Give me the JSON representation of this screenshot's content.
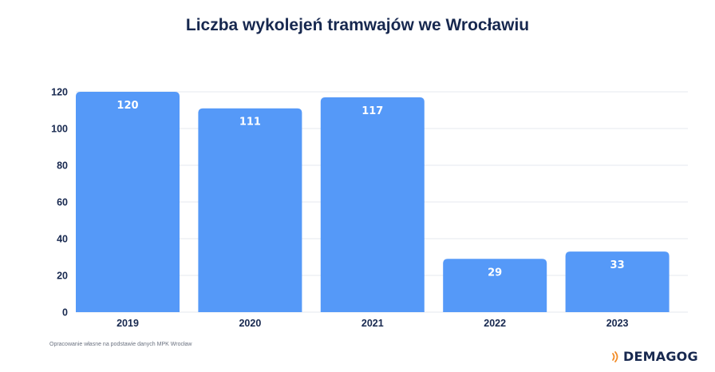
{
  "page": {
    "source_note": "Opracowanie własne na podstawie danych MPK Wrocław",
    "logo_text": "DEMAGOG"
  },
  "colors": {
    "bar": "#5599f8",
    "title": "#17284f",
    "grid": "#e6e9ef",
    "axis_text": "#17284f",
    "logo_accent": "#f28c28"
  },
  "chart_data": {
    "type": "bar",
    "title": "Liczba wykolejeń tramwajów we Wrocławiu",
    "xlabel": "",
    "ylabel": "",
    "categories": [
      "2019",
      "2020",
      "2021",
      "2022",
      "2023"
    ],
    "values": [
      120,
      111,
      117,
      29,
      33
    ],
    "data_labels": [
      "120",
      "111",
      "117",
      "29",
      "33"
    ],
    "ylim": [
      0,
      120
    ],
    "yticks": [
      0,
      20,
      40,
      60,
      80,
      100,
      120
    ],
    "grid": true,
    "legend": "none"
  }
}
